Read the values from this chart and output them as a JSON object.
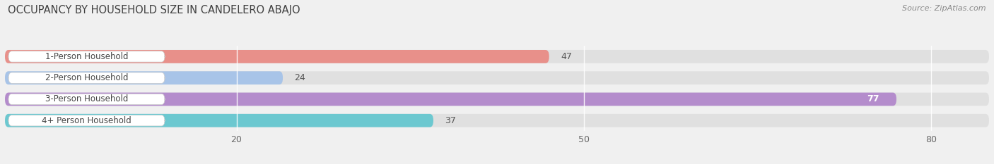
{
  "title": "OCCUPANCY BY HOUSEHOLD SIZE IN CANDELERO ABAJO",
  "source": "Source: ZipAtlas.com",
  "categories": [
    "1-Person Household",
    "2-Person Household",
    "3-Person Household",
    "4+ Person Household"
  ],
  "values": [
    47,
    24,
    77,
    37
  ],
  "bar_colors": [
    "#e8908a",
    "#a8c4e8",
    "#b48ccc",
    "#6cc8d0"
  ],
  "xlim_max": 85,
  "xticks": [
    20,
    50,
    80
  ],
  "figsize": [
    14.06,
    2.33
  ],
  "dpi": 100,
  "title_fontsize": 10.5,
  "source_fontsize": 8,
  "label_fontsize": 8.5,
  "value_fontsize": 9,
  "tick_fontsize": 9,
  "bg_color": "#f0f0f0",
  "bar_bg_color": "#e0e0e0",
  "label_bg_color": "#ffffff",
  "label_text_color": "#444444",
  "value_text_color": "#555555"
}
